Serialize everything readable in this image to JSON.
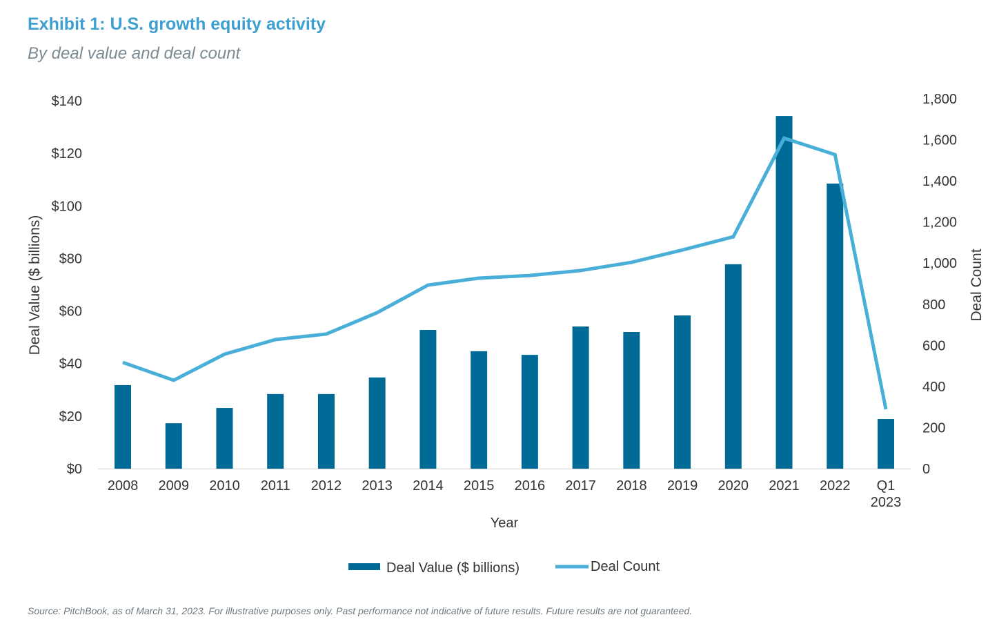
{
  "header": {
    "title": "Exhibit 1: U.S. growth equity activity",
    "subtitle": "By deal value and deal count"
  },
  "footer": {
    "source": "Source: PitchBook, as of March 31, 2023. For illustrative purposes only. Past performance not indicative of future results. Future results are not guaranteed."
  },
  "chart_data": {
    "type": "bar+line",
    "xlabel": "Year",
    "ylabel": "Deal Value ($ billions)",
    "y2label": "Deal Count",
    "categories": [
      "2008",
      "2009",
      "2010",
      "2011",
      "2012",
      "2013",
      "2014",
      "2015",
      "2016",
      "2017",
      "2018",
      "2019",
      "2020",
      "2021",
      "2022",
      "Q1 2023"
    ],
    "ylim": [
      0,
      140
    ],
    "yticks": [
      "$0",
      "$20",
      "$40",
      "$60",
      "$80",
      "$100",
      "$120",
      "$140"
    ],
    "y2lim": [
      0,
      1800
    ],
    "y2ticks": [
      "0",
      "200",
      "400",
      "600",
      "800",
      "1,000",
      "1,200",
      "1,400",
      "1,600",
      "1,800"
    ],
    "grid": false,
    "legend": "bottom",
    "series": [
      {
        "name": "Deal Value ($ billions)",
        "type": "bar",
        "axis": "left",
        "color": "#006a96",
        "values": [
          31.8,
          17.3,
          23.1,
          28.4,
          28.4,
          34.7,
          52.8,
          44.7,
          43.3,
          54.1,
          52.0,
          58.3,
          77.8,
          134.2,
          108.5,
          18.9
        ]
      },
      {
        "name": "Deal Count",
        "type": "line",
        "axis": "right",
        "color": "#4aafd8",
        "values": [
          517,
          430,
          557,
          628,
          655,
          759,
          893,
          927,
          940,
          964,
          1004,
          1064,
          1128,
          1608,
          1528,
          289
        ]
      }
    ]
  }
}
